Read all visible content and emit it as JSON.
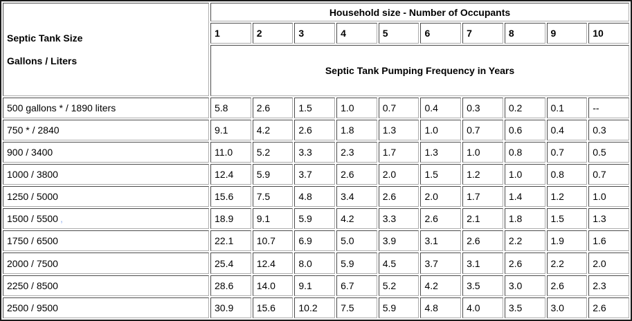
{
  "table": {
    "corner_header": {
      "line1": "Septic Tank Size",
      "line2": "Gallons / Liters"
    },
    "occupants_header": "Household size - Number of Occupants",
    "occupant_counts": [
      "1",
      "2",
      "3",
      "4",
      "5",
      "6",
      "7",
      "8",
      "9",
      "10"
    ],
    "frequency_header": "Septic Tank Pumping Frequency in Years",
    "rows": [
      {
        "label": "500 gallons * / 1890 liters",
        "values": [
          "5.8",
          "2.6",
          "1.5",
          "1.0",
          "0.7",
          "0.4",
          "0.3",
          "0.2",
          "0.1",
          "--"
        ]
      },
      {
        "label": "750 * / 2840",
        "values": [
          "9.1",
          "4.2",
          "2.6",
          "1.8",
          "1.3",
          "1.0",
          "0.7",
          "0.6",
          "0.4",
          "0.3"
        ]
      },
      {
        "label": "900 / 3400",
        "values": [
          "11.0",
          "5.2",
          "3.3",
          "2.3",
          "1.7",
          "1.3",
          "1.0",
          "0.8",
          "0.7",
          "0.5"
        ]
      },
      {
        "label": "1000 / 3800",
        "values": [
          "12.4",
          "5.9",
          "3.7",
          "2.6",
          "2.0",
          "1.5",
          "1.2",
          "1.0",
          "0.8",
          "0.7"
        ]
      },
      {
        "label": "1250 / 5000",
        "values": [
          "15.6",
          "7.5",
          "4.8",
          "3.4",
          "2.6",
          "2.0",
          "1.7",
          "1.4",
          "1.2",
          "1.0"
        ]
      },
      {
        "label": "1500 / 5500",
        "stray_mark": ",",
        "values": [
          "18.9",
          "9.1",
          "5.9",
          "4.2",
          "3.3",
          "2.6",
          "2.1",
          "1.8",
          "1.5",
          "1.3"
        ]
      },
      {
        "label": "1750 / 6500",
        "values": [
          "22.1",
          "10.7",
          "6.9",
          "5.0",
          "3.9",
          "3.1",
          "2.6",
          "2.2",
          "1.9",
          "1.6"
        ]
      },
      {
        "label": "2000 / 7500",
        "values": [
          "25.4",
          "12.4",
          "8.0",
          "5.9",
          "4.5",
          "3.7",
          "3.1",
          "2.6",
          "2.2",
          "2.0"
        ]
      },
      {
        "label": "2250 / 8500",
        "values": [
          "28.6",
          "14.0",
          "9.1",
          "6.7",
          "5.2",
          "4.2",
          "3.5",
          "3.0",
          "2.6",
          "2.3"
        ]
      },
      {
        "label": "2500 / 9500",
        "values": [
          "30.9",
          "15.6",
          "10.2",
          "7.5",
          "5.9",
          "4.8",
          "4.0",
          "3.5",
          "3.0",
          "2.6"
        ]
      }
    ],
    "colors": {
      "background": "#ffffff",
      "text": "#000000",
      "outer_border": "#1c1c1c",
      "cell_border_dark": "#4a4a4a",
      "cell_border_light": "#ababab",
      "stray_mark": "#96b2ee"
    }
  },
  "chart_data": {
    "type": "table",
    "title": "Septic Tank Pumping Frequency in Years",
    "row_header": "Septic Tank Size Gallons / Liters",
    "column_group_header": "Household size - Number of Occupants",
    "columns": [
      1,
      2,
      3,
      4,
      5,
      6,
      7,
      8,
      9,
      10
    ],
    "rows": [
      {
        "label": "500 gallons * / 1890 liters",
        "values": [
          5.8,
          2.6,
          1.5,
          1.0,
          0.7,
          0.4,
          0.3,
          0.2,
          0.1,
          null
        ]
      },
      {
        "label": "750 * / 2840",
        "values": [
          9.1,
          4.2,
          2.6,
          1.8,
          1.3,
          1.0,
          0.7,
          0.6,
          0.4,
          0.3
        ]
      },
      {
        "label": "900 / 3400",
        "values": [
          11.0,
          5.2,
          3.3,
          2.3,
          1.7,
          1.3,
          1.0,
          0.8,
          0.7,
          0.5
        ]
      },
      {
        "label": "1000 / 3800",
        "values": [
          12.4,
          5.9,
          3.7,
          2.6,
          2.0,
          1.5,
          1.2,
          1.0,
          0.8,
          0.7
        ]
      },
      {
        "label": "1250 / 5000",
        "values": [
          15.6,
          7.5,
          4.8,
          3.4,
          2.6,
          2.0,
          1.7,
          1.4,
          1.2,
          1.0
        ]
      },
      {
        "label": "1500 / 5500",
        "values": [
          18.9,
          9.1,
          5.9,
          4.2,
          3.3,
          2.6,
          2.1,
          1.8,
          1.5,
          1.3
        ]
      },
      {
        "label": "1750 / 6500",
        "values": [
          22.1,
          10.7,
          6.9,
          5.0,
          3.9,
          3.1,
          2.6,
          2.2,
          1.9,
          1.6
        ]
      },
      {
        "label": "2000 / 7500",
        "values": [
          25.4,
          12.4,
          8.0,
          5.9,
          4.5,
          3.7,
          3.1,
          2.6,
          2.2,
          2.0
        ]
      },
      {
        "label": "2250 / 8500",
        "values": [
          28.6,
          14.0,
          9.1,
          6.7,
          5.2,
          4.2,
          3.5,
          3.0,
          2.6,
          2.3
        ]
      },
      {
        "label": "2500 / 9500",
        "values": [
          30.9,
          15.6,
          10.2,
          7.5,
          5.9,
          4.8,
          4.0,
          3.5,
          3.0,
          2.6
        ]
      }
    ]
  }
}
